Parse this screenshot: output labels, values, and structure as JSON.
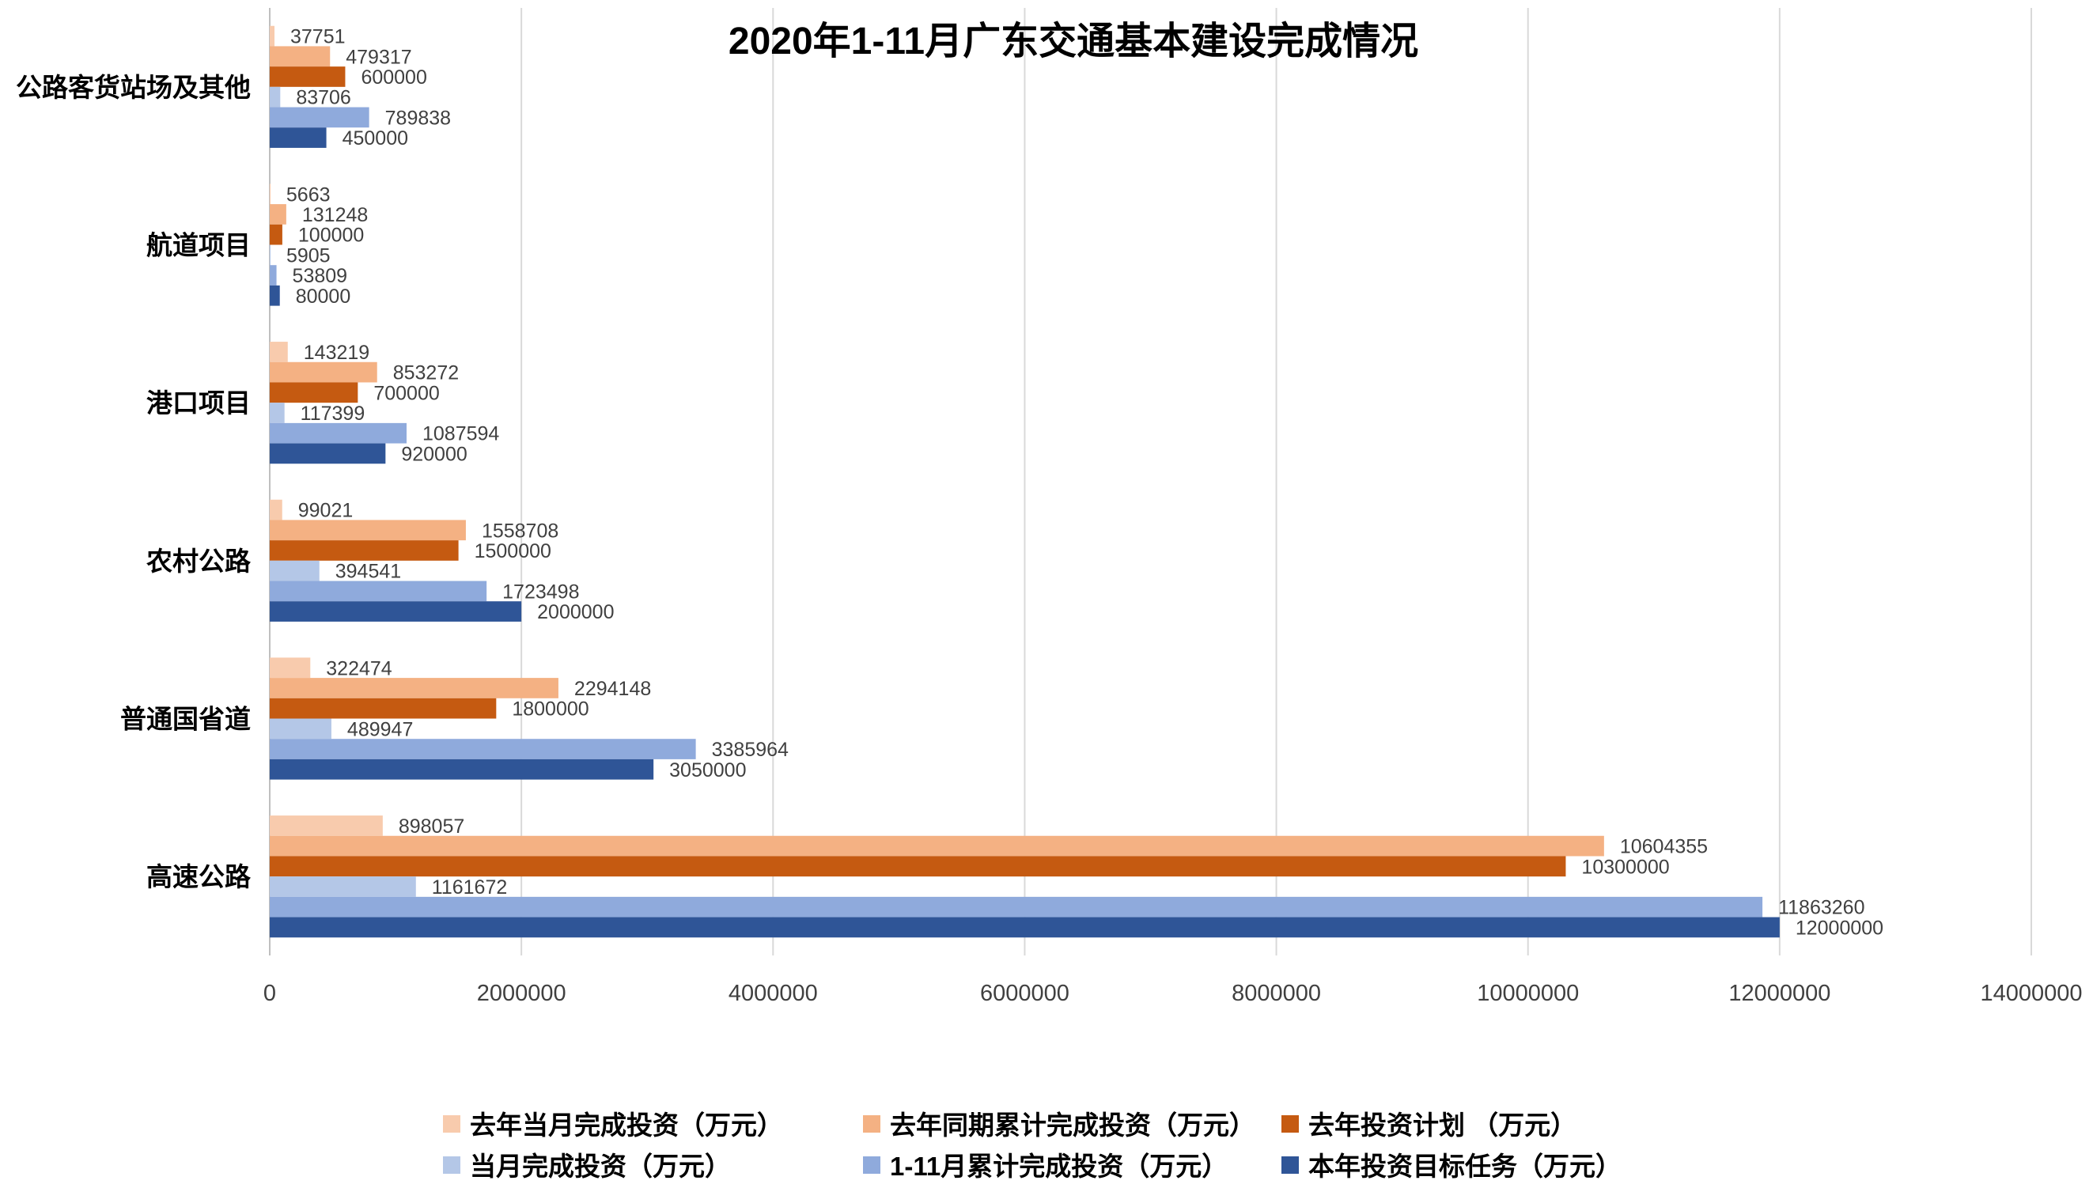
{
  "chart_data": {
    "type": "bar",
    "orientation": "horizontal",
    "title": "2020年1-11月广东交通基本建设完成情况",
    "categories": [
      "公路客货站场及其他",
      "航道项目",
      "港口项目",
      "农村公路",
      "普通国省道",
      "高速公路"
    ],
    "series": [
      {
        "name": "去年当月完成投资（万元）",
        "color": "#F8CBAD",
        "values": [
          37751,
          5663,
          143219,
          99021,
          322474,
          898057
        ]
      },
      {
        "name": "去年同期累计完成投资（万元）",
        "color": "#F4B183",
        "values": [
          479317,
          131248,
          853272,
          1558708,
          2294148,
          10604355
        ]
      },
      {
        "name": "去年投资计划 （万元）",
        "color": "#C55A11",
        "values": [
          600000,
          100000,
          700000,
          1500000,
          1800000,
          10300000
        ]
      },
      {
        "name": "当月完成投资（万元）",
        "color": "#B4C7E7",
        "values": [
          83706,
          5905,
          117399,
          394541,
          489947,
          1161672
        ]
      },
      {
        "name": "1-11月累计完成投资（万元）",
        "color": "#8FAADC",
        "values": [
          789838,
          53809,
          1087594,
          1723498,
          3385964,
          11863260
        ]
      },
      {
        "name": "本年投资目标任务（万元）",
        "color": "#2F5597",
        "values": [
          450000,
          80000,
          920000,
          2000000,
          3050000,
          12000000
        ]
      }
    ],
    "xlim": [
      0,
      14000000
    ],
    "xticks": [
      "0",
      "2000000",
      "4000000",
      "6000000",
      "8000000",
      "10000000",
      "12000000",
      "14000000"
    ],
    "grid": true,
    "data_labels": true,
    "legend_position": "bottom"
  }
}
